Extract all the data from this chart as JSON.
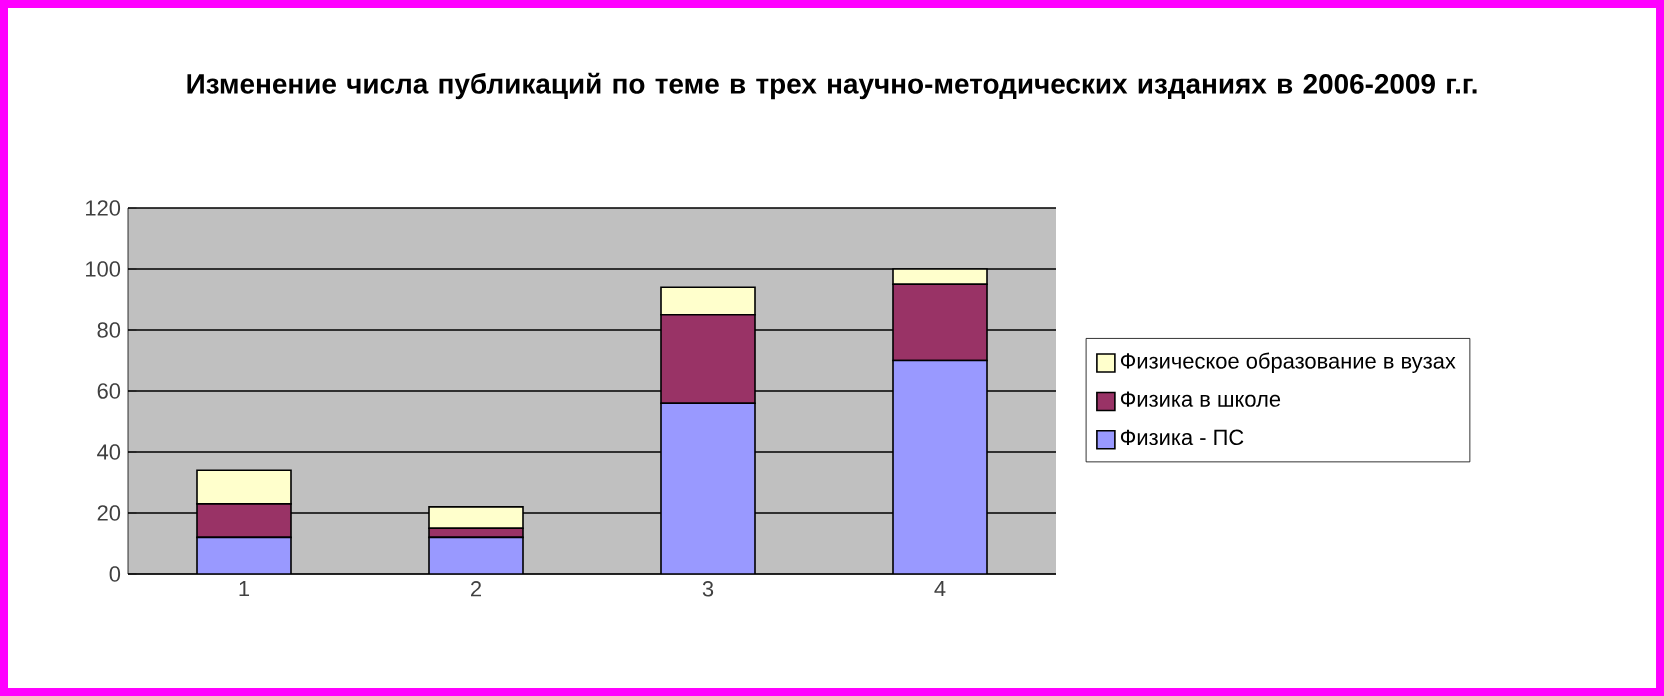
{
  "chart_data": {
    "type": "bar",
    "title": "Изменение числа публикаций по теме в трех научно-методических изданиях в 2006-2009 г.г.",
    "categories": [
      "1",
      "2",
      "3",
      "4"
    ],
    "stacked": true,
    "series": [
      {
        "name": "Физика - ПС",
        "color": "#9999ff",
        "values": [
          12,
          12,
          56,
          70
        ]
      },
      {
        "name": "Физика в школе",
        "color": "#993366",
        "values": [
          11,
          3,
          29,
          25
        ]
      },
      {
        "name": "Физическое образование в вузах",
        "color": "#ffffcc",
        "values": [
          11,
          7,
          9,
          5
        ]
      }
    ],
    "ylim": [
      0,
      120
    ],
    "yticks": [
      0,
      20,
      40,
      60,
      80,
      100,
      120
    ],
    "grid": "y",
    "legend": "right"
  }
}
